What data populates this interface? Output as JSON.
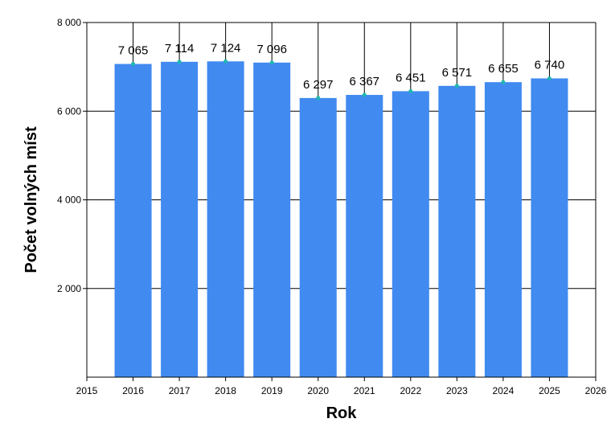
{
  "chart_data": {
    "type": "bar",
    "title": "",
    "xlabel": "Rok",
    "ylabel": "Počet volných míst",
    "x": [
      2016,
      2017,
      2018,
      2019,
      2020,
      2021,
      2022,
      2023,
      2024,
      2025
    ],
    "values": [
      7065,
      7114,
      7124,
      7096,
      6297,
      6367,
      6451,
      6571,
      6655,
      6740
    ],
    "value_labels": [
      "7 065",
      "7 114",
      "7 124",
      "7 096",
      "6 297",
      "6 367",
      "6 451",
      "6 571",
      "6 655",
      "6 740"
    ],
    "xlim": [
      2015,
      2026
    ],
    "ylim": [
      0,
      8000
    ],
    "x_ticks": [
      "2015",
      "2016",
      "2017",
      "2018",
      "2019",
      "2020",
      "2021",
      "2022",
      "2023",
      "2024",
      "2025",
      "2026"
    ],
    "y_ticks": [
      2000,
      4000,
      6000,
      8000
    ],
    "y_tick_labels": [
      "2 000",
      "4 000",
      "6 000",
      "8 000"
    ],
    "grid": "y-major plus vertical lines at each bar",
    "bar_color": "#418af0",
    "marker_color": "#1fb8b0",
    "grid_color": "#000000"
  }
}
